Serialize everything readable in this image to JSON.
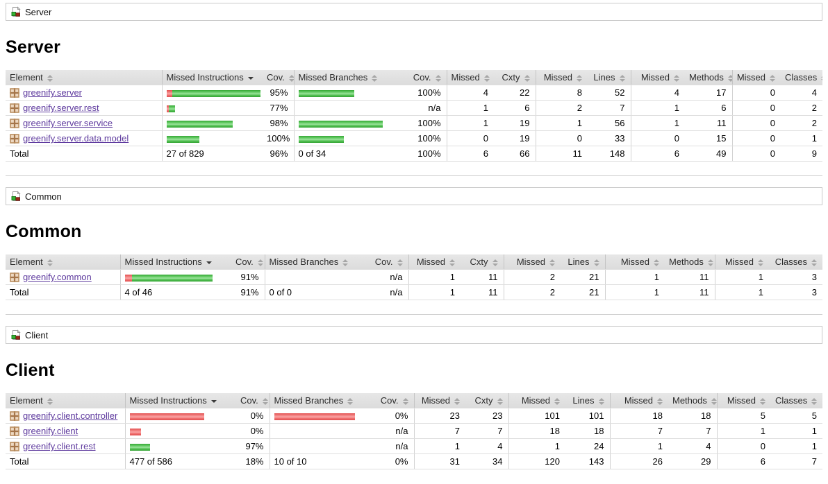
{
  "colors": {
    "link_purple": "#5e3a9e",
    "bar_green": "#4fbe4f",
    "bar_red": "#ef6c6c",
    "header_bg": "#e0e0e0"
  },
  "columns": [
    "Element",
    "Missed Instructions",
    "Cov.",
    "Missed Branches",
    "Cov.",
    "Missed",
    "Cxty",
    "Missed",
    "Lines",
    "Missed",
    "Methods",
    "Missed",
    "Classes"
  ],
  "sections": [
    {
      "breadcrumb": "Server",
      "title": "Server",
      "rows": [
        {
          "element": "greenify.server",
          "mi_red": 8,
          "mi_green": 127,
          "mi_cov": "95%",
          "mb_red": 0,
          "mb_green": 80,
          "mb_cov": "100%",
          "nums": [
            "4",
            "22",
            "8",
            "52",
            "4",
            "17",
            "0",
            "4"
          ]
        },
        {
          "element": "greenify.server.rest",
          "mi_red": 3,
          "mi_green": 9,
          "mi_cov": "77%",
          "mb_red": 0,
          "mb_green": 0,
          "mb_cov": "n/a",
          "nums": [
            "1",
            "6",
            "2",
            "7",
            "1",
            "6",
            "0",
            "2"
          ]
        },
        {
          "element": "greenify.server.service",
          "mi_red": 0,
          "mi_green": 95,
          "mi_cov": "98%",
          "mb_red": 0,
          "mb_green": 121,
          "mb_cov": "100%",
          "nums": [
            "1",
            "19",
            "1",
            "56",
            "1",
            "11",
            "0",
            "2"
          ]
        },
        {
          "element": "greenify.server.data.model",
          "mi_red": 0,
          "mi_green": 47,
          "mi_cov": "100%",
          "mb_red": 0,
          "mb_green": 65,
          "mb_cov": "100%",
          "nums": [
            "0",
            "19",
            "0",
            "33",
            "0",
            "15",
            "0",
            "1"
          ]
        }
      ],
      "total": {
        "label": "Total",
        "mi": "27 of 829",
        "mi_cov": "96%",
        "mb": "0 of 34",
        "mb_cov": "100%",
        "nums": [
          "6",
          "66",
          "11",
          "148",
          "6",
          "49",
          "0",
          "9"
        ]
      }
    },
    {
      "breadcrumb": "Common",
      "title": "Common",
      "rows": [
        {
          "element": "greenify.common",
          "mi_red": 10,
          "mi_green": 116,
          "mi_cov": "91%",
          "mb_red": 0,
          "mb_green": 0,
          "mb_cov": "n/a",
          "nums": [
            "1",
            "11",
            "2",
            "21",
            "1",
            "11",
            "1",
            "3"
          ]
        }
      ],
      "total": {
        "label": "Total",
        "mi": "4 of 46",
        "mi_cov": "91%",
        "mb": "0 of 0",
        "mb_cov": "n/a",
        "nums": [
          "1",
          "11",
          "2",
          "21",
          "1",
          "11",
          "1",
          "3"
        ]
      }
    },
    {
      "breadcrumb": "Client",
      "title": "Client",
      "rows": [
        {
          "element": "greenify.client.controller",
          "mi_red": 107,
          "mi_green": 0,
          "mi_cov": "0%",
          "mb_red": 116,
          "mb_green": 0,
          "mb_cov": "0%",
          "nums": [
            "23",
            "23",
            "101",
            "101",
            "18",
            "18",
            "5",
            "5"
          ]
        },
        {
          "element": "greenify.client",
          "mi_red": 16,
          "mi_green": 0,
          "mi_cov": "0%",
          "mb_red": 0,
          "mb_green": 0,
          "mb_cov": "n/a",
          "nums": [
            "7",
            "7",
            "18",
            "18",
            "7",
            "7",
            "1",
            "1"
          ]
        },
        {
          "element": "greenify.client.rest",
          "mi_red": 0,
          "mi_green": 29,
          "mi_cov": "97%",
          "mb_red": 0,
          "mb_green": 0,
          "mb_cov": "n/a",
          "nums": [
            "1",
            "4",
            "1",
            "24",
            "1",
            "4",
            "0",
            "1"
          ]
        }
      ],
      "total": {
        "label": "Total",
        "mi": "477 of 586",
        "mi_cov": "18%",
        "mb": "10 of 10",
        "mb_cov": "0%",
        "nums": [
          "31",
          "34",
          "120",
          "143",
          "26",
          "29",
          "6",
          "7"
        ]
      }
    }
  ]
}
